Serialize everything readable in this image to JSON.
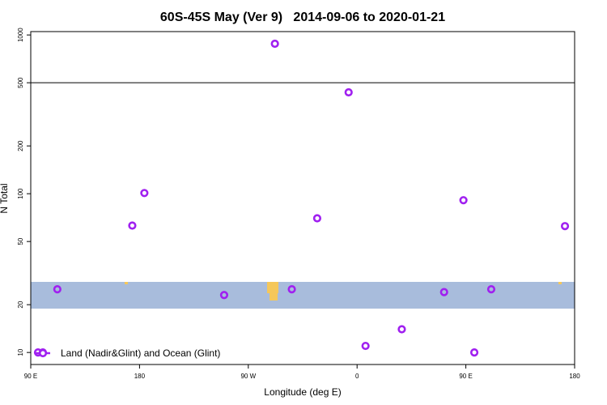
{
  "chart_data": {
    "type": "scatter",
    "title": "60S-45S May (Ver 9)   2014-09-06 to 2020-01-21",
    "x_label": "Longitude (deg E)",
    "y_label": "N Total",
    "log_y": true,
    "xlim": [
      90,
      540
    ],
    "xticks": [
      {
        "value": 90,
        "label": "90 E"
      },
      {
        "value": 180,
        "label": "180"
      },
      {
        "value": 270,
        "label": "90 W"
      },
      {
        "value": 360,
        "label": "0"
      },
      {
        "value": 450,
        "label": "90 E"
      },
      {
        "value": 540,
        "label": "180"
      }
    ],
    "ylim": [
      8.4,
      1050
    ],
    "yticks": [
      10,
      20,
      50,
      100,
      200,
      500,
      1000
    ],
    "hline": 500,
    "legend": "bottom-left",
    "series": [
      {
        "name": "Land (Nadir&Glint) and Ocean (Glint)",
        "color": "#a020f0",
        "x": [
          96,
          100,
          112,
          174,
          184,
          250,
          292,
          306,
          327,
          353,
          367,
          397,
          432,
          448,
          457,
          471,
          532
        ],
        "values": [
          10,
          10,
          25,
          63,
          101,
          23,
          880,
          25,
          70,
          435,
          11,
          14,
          24,
          91,
          10,
          25,
          62.5
        ]
      }
    ]
  }
}
